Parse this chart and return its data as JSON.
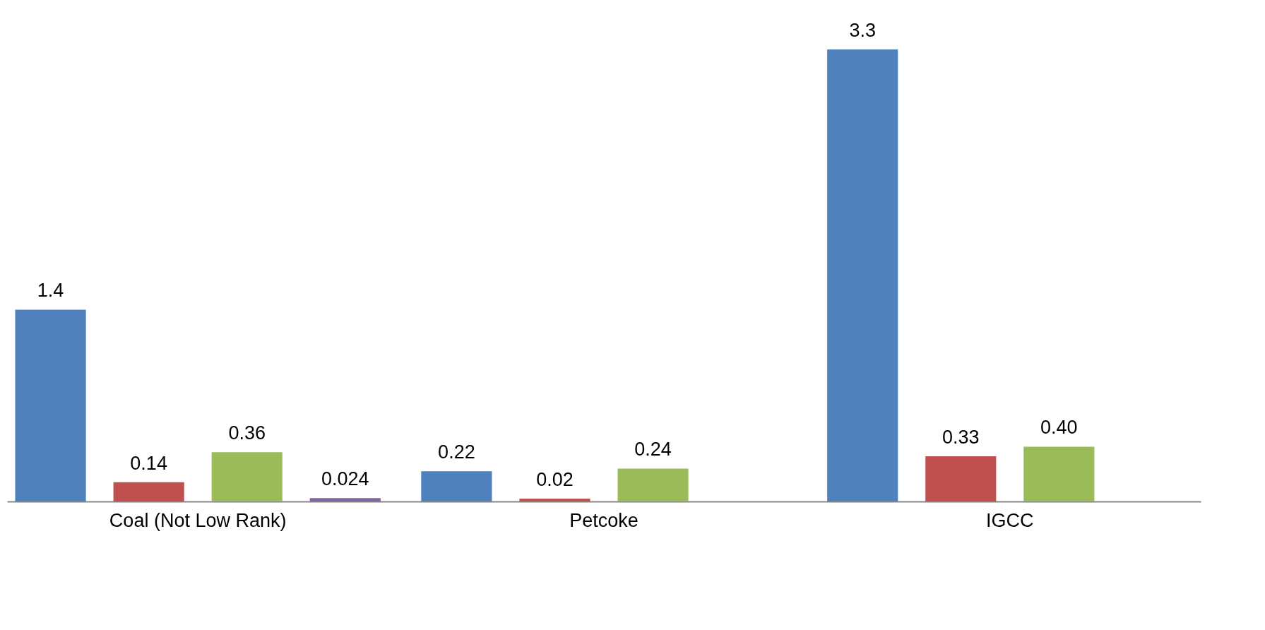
{
  "chart_data": {
    "type": "bar",
    "categories": [
      "Coal (Not Low Rank)",
      "Petcoke",
      "IGCC"
    ],
    "series": [
      {
        "color": "#4f81bd",
        "values": [
          1.4,
          0.22,
          3.3
        ],
        "value_labels": [
          "1.4",
          "0.22",
          "3.3"
        ]
      },
      {
        "color": "#c0504d",
        "values": [
          0.14,
          0.02,
          0.33
        ],
        "value_labels": [
          "0.14",
          "0.02",
          "0.33"
        ]
      },
      {
        "color": "#9bbb59",
        "values": [
          0.36,
          0.24,
          0.4
        ],
        "value_labels": [
          "0.36",
          "0.24",
          "0.40"
        ]
      },
      {
        "color": "#8064a2",
        "values": [
          0.024,
          null,
          null
        ],
        "value_labels": [
          "0.024",
          null,
          null
        ]
      }
    ],
    "grid": false,
    "legend": false
  }
}
